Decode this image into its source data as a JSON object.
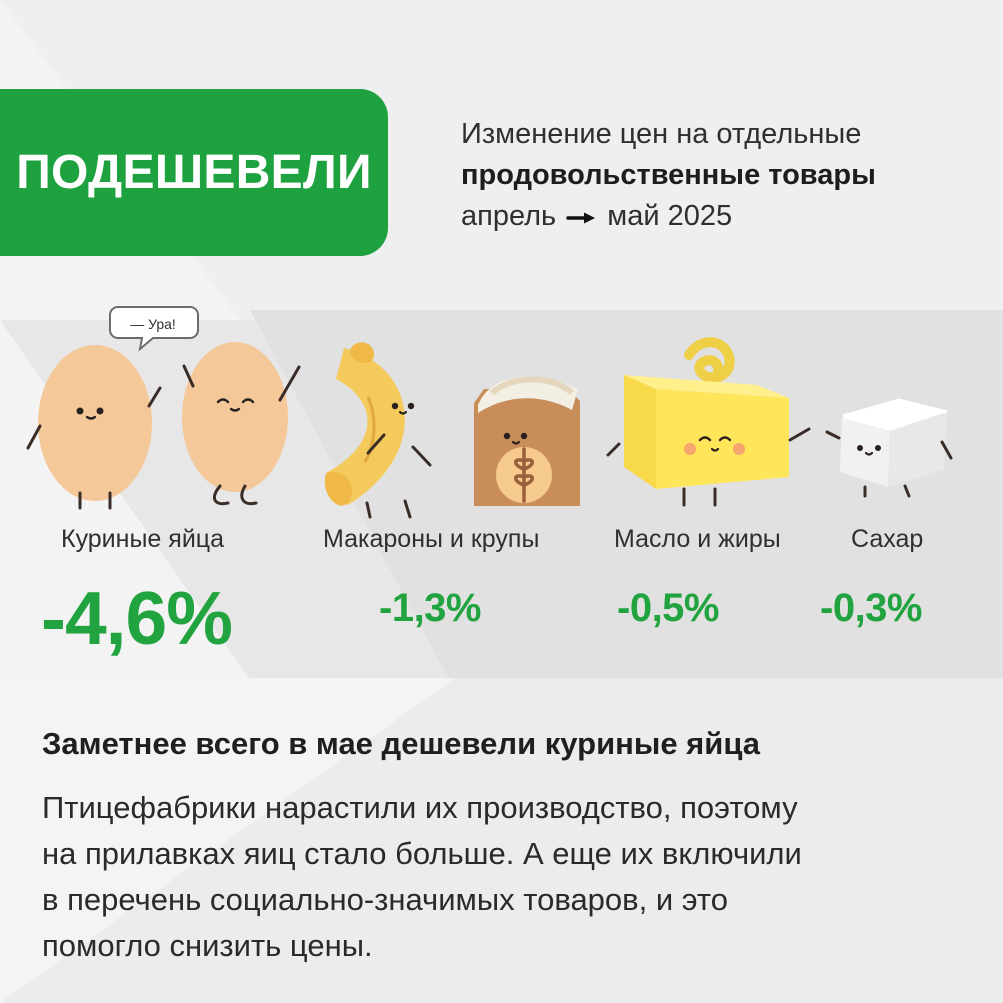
{
  "colors": {
    "accent": "#1ea13f",
    "text_primary": "#1f1f1f",
    "text_secondary": "#2f2f2f",
    "background": "#f3f3f3"
  },
  "header": {
    "badge": "ПОДЕШЕВЕЛИ",
    "line1": "Изменение цен на отдельные",
    "line2": "продовольственные товары",
    "period_start": "апрель",
    "period_end": "май 2025",
    "arrow_icon": "arrow-right-icon"
  },
  "speech_bubble": {
    "text": "— Ура!"
  },
  "items": [
    {
      "label": "Куриные яйца",
      "value": "-4,6%",
      "icon": "eggs-icon"
    },
    {
      "label": "Макароны и крупы",
      "value": "-1,3%",
      "icon": "pasta-grain-icon"
    },
    {
      "label": "Масло и жиры",
      "value": "-0,5%",
      "icon": "butter-icon"
    },
    {
      "label": "Сахар",
      "value": "-0,3%",
      "icon": "sugar-cube-icon"
    }
  ],
  "details": {
    "title": "Заметнее всего в мае дешевели куриные яйца",
    "lines": [
      "Птицефабрики нарастили их производство, поэтому",
      "на прилавках яиц стало больше. А еще их включили",
      "в перечень социально-значимых товаров, и это",
      "помогло снизить цены."
    ]
  }
}
